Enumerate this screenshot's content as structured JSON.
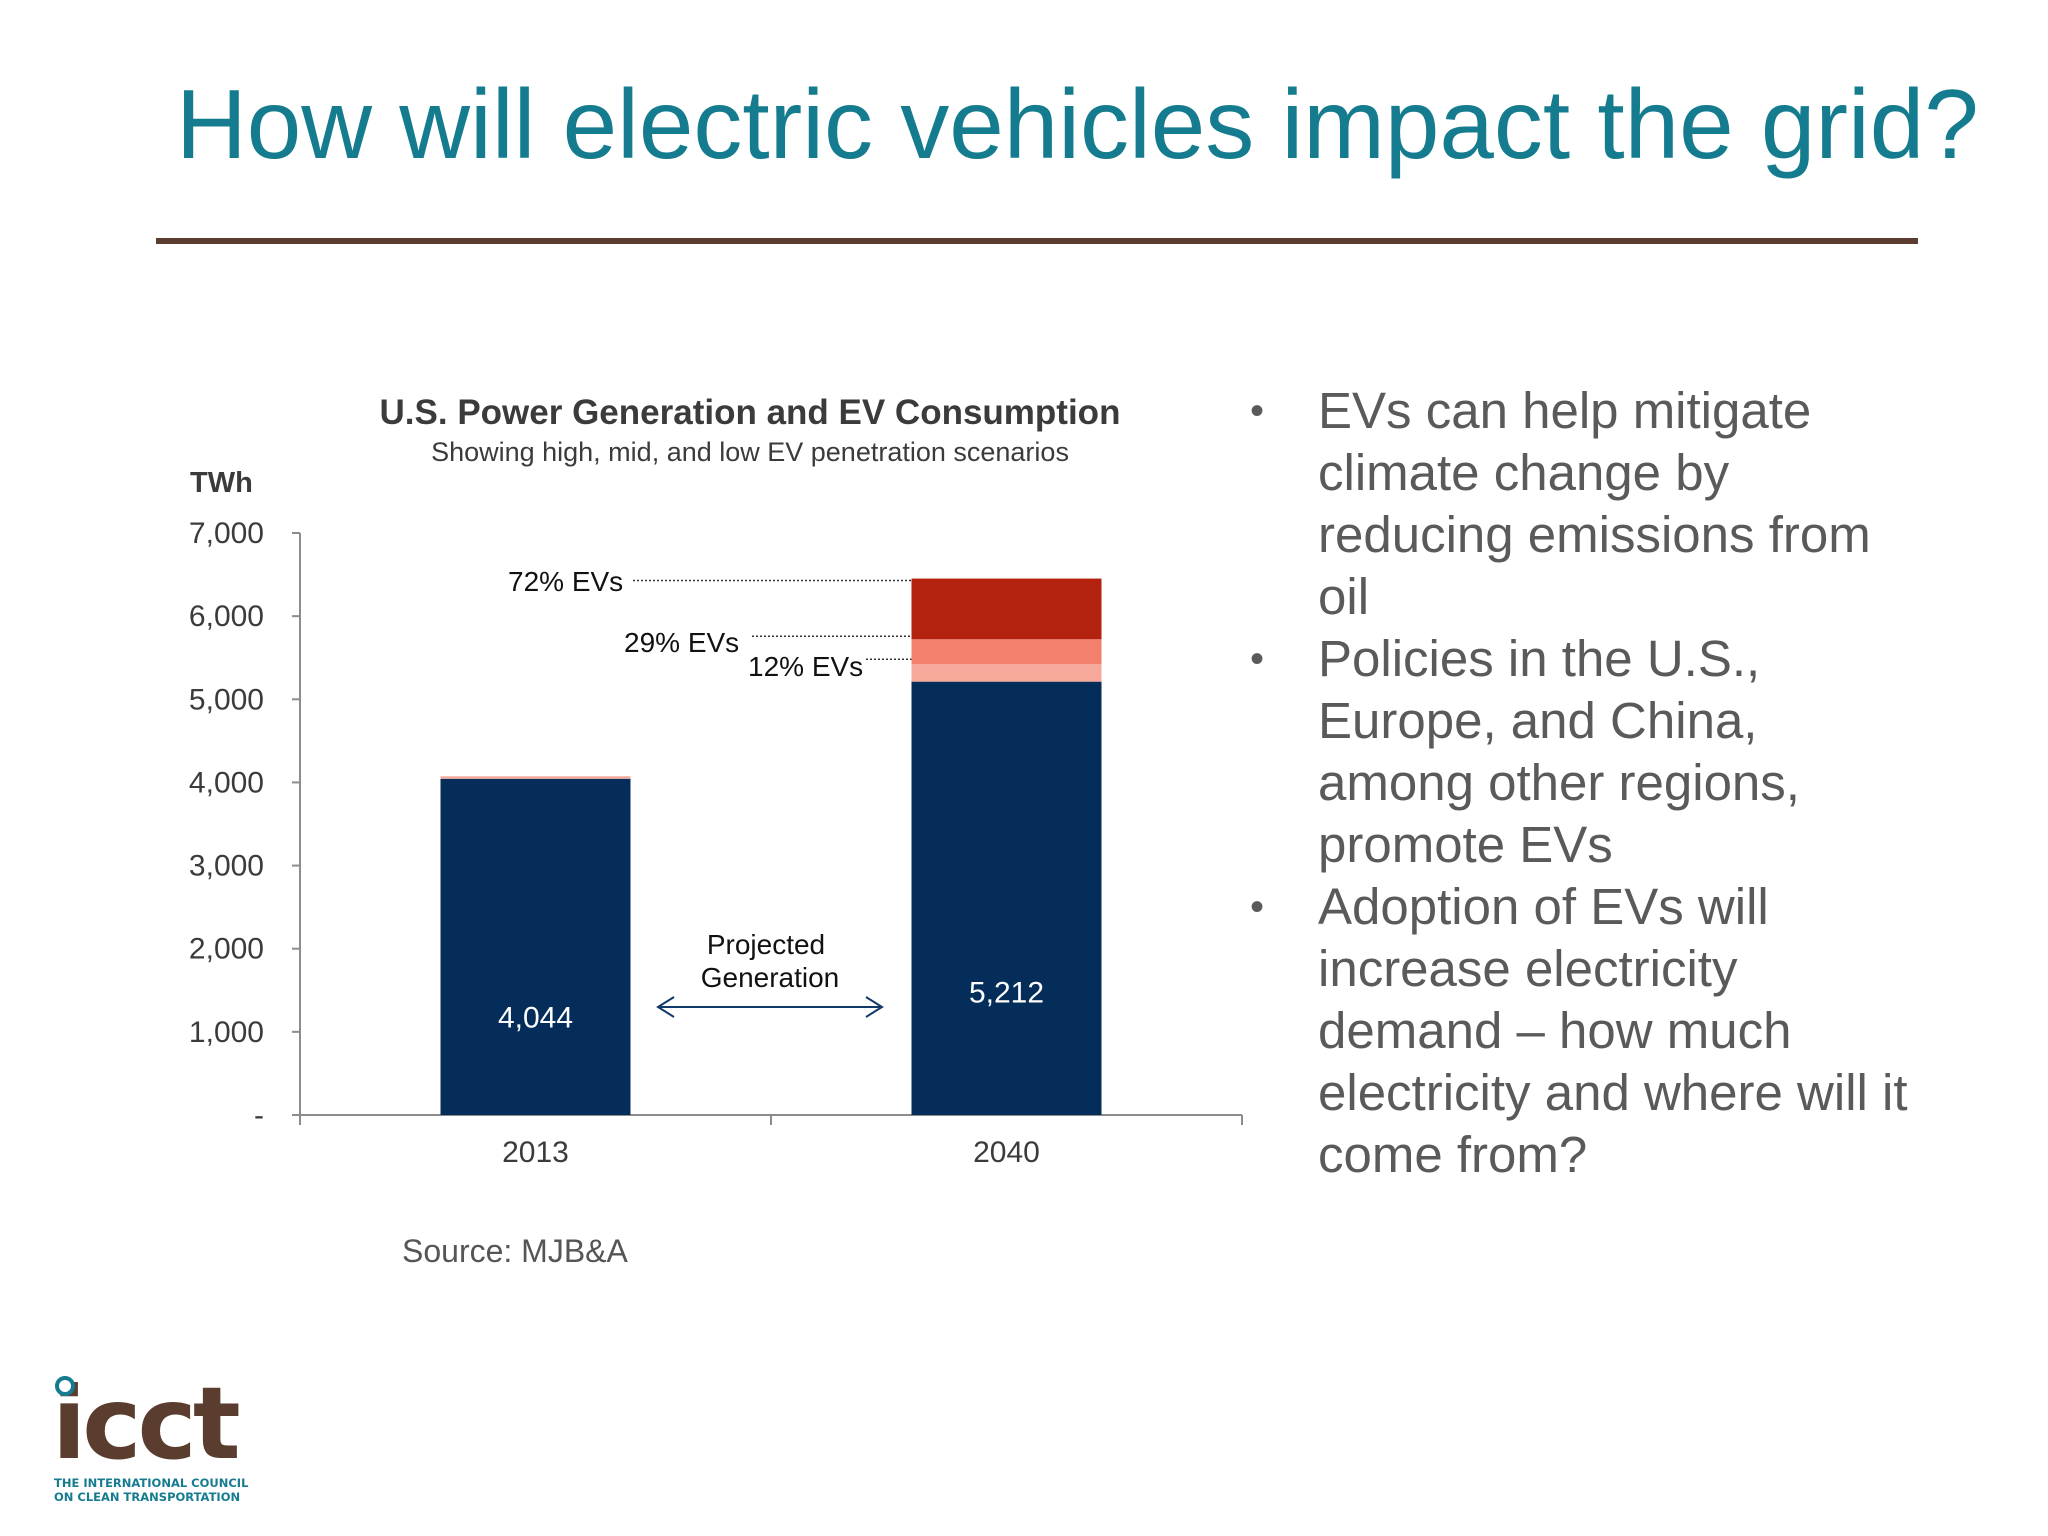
{
  "slide": {
    "title": "How will electric vehicles impact the grid?"
  },
  "colors": {
    "title": "#157c8f",
    "rule": "#5a3d2e",
    "bar_base": "#042d5a",
    "ev_12": "#f6a89b",
    "ev_29": "#f3806c",
    "ev_72": "#b2220f",
    "text": "#5a5a5a"
  },
  "chart_data": {
    "type": "bar",
    "stacked": true,
    "title": "U.S. Power Generation and EV Consumption",
    "subtitle": "Showing high, mid, and low EV penetration scenarios",
    "ylabel": "TWh",
    "ylim": [
      0,
      7000
    ],
    "y_ticks": [
      {
        "value": 0,
        "label": "-"
      },
      {
        "value": 1000,
        "label": "1,000"
      },
      {
        "value": 2000,
        "label": "2,000"
      },
      {
        "value": 3000,
        "label": "3,000"
      },
      {
        "value": 4000,
        "label": "4,000"
      },
      {
        "value": 5000,
        "label": "5,000"
      },
      {
        "value": 6000,
        "label": "6,000"
      },
      {
        "value": 7000,
        "label": "7,000"
      }
    ],
    "categories": [
      "2013",
      "2040"
    ],
    "series": [
      {
        "values": [
          4044,
          5212
        ],
        "data_labels": [
          "4,044",
          "5,212"
        ]
      },
      {
        "name": "12% EVs",
        "values": [
          30,
          210
        ]
      },
      {
        "name": "29% EVs",
        "values": [
          0,
          300
        ]
      },
      {
        "name": "72% EVs",
        "values": [
          0,
          730
        ]
      }
    ],
    "annotations": [
      {
        "text": "72% EVs"
      },
      {
        "text": "29% EVs"
      },
      {
        "text": "12% EVs"
      },
      {
        "text_lines": [
          "Projected",
          "Generation"
        ]
      }
    ],
    "grid": false,
    "source": "Source: MJB&A"
  },
  "bullets": [
    "EVs can help mitigate climate change by reducing emissions from oil",
    "Policies in the U.S., Europe, and China, among other regions, promote EVs",
    "Adoption of EVs will increase electricity demand – how much electricity and where will it come from?"
  ],
  "logo": {
    "wordmark": "icct",
    "tagline_line1": "THE INTERNATIONAL COUNCIL",
    "tagline_line2": "ON CLEAN TRANSPORTATION"
  }
}
